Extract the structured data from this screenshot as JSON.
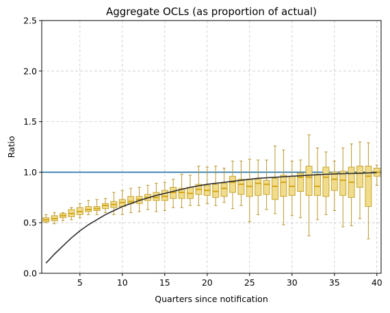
{
  "chart_data": {
    "type": "box",
    "title": "Aggregate OCLs (as proportion of actual)",
    "xlabel": "Quarters since notification",
    "ylabel": "Ratio",
    "xlim": [
      0.5,
      40.5
    ],
    "ylim": [
      0.0,
      2.5
    ],
    "xticks": [
      5,
      10,
      15,
      20,
      25,
      30,
      35,
      40
    ],
    "yticks": [
      0.0,
      0.5,
      1.0,
      1.5,
      2.0,
      2.5
    ],
    "grid": true,
    "reference_line": 1.0,
    "colors": {
      "box_fill": "#f0dc8a",
      "box_edge": "#c8a532",
      "median": "#d4a514",
      "whisker": "#b8962e",
      "curve": "#2b2b2b",
      "reference": "#1f6fa3",
      "grid": "#c8c8c8"
    },
    "boxes": [
      {
        "q": 1,
        "whislo": 0.5,
        "q1": 0.51,
        "med": 0.53,
        "q3": 0.55,
        "whishi": 0.58
      },
      {
        "q": 2,
        "whislo": 0.49,
        "q1": 0.52,
        "med": 0.54,
        "q3": 0.57,
        "whishi": 0.6
      },
      {
        "q": 3,
        "whislo": 0.52,
        "q1": 0.55,
        "med": 0.57,
        "q3": 0.59,
        "whishi": 0.6
      },
      {
        "q": 4,
        "whislo": 0.53,
        "q1": 0.56,
        "med": 0.59,
        "q3": 0.63,
        "whishi": 0.65
      },
      {
        "q": 5,
        "whislo": 0.55,
        "q1": 0.58,
        "med": 0.61,
        "q3": 0.65,
        "whishi": 0.69
      },
      {
        "q": 6,
        "whislo": 0.58,
        "q1": 0.61,
        "med": 0.63,
        "q3": 0.66,
        "whishi": 0.72
      },
      {
        "q": 7,
        "whislo": 0.58,
        "q1": 0.62,
        "med": 0.64,
        "q3": 0.66,
        "whishi": 0.73
      },
      {
        "q": 8,
        "whislo": 0.6,
        "q1": 0.64,
        "med": 0.67,
        "q3": 0.69,
        "whishi": 0.74
      },
      {
        "q": 9,
        "whislo": 0.58,
        "q1": 0.65,
        "med": 0.68,
        "q3": 0.71,
        "whishi": 0.8
      },
      {
        "q": 10,
        "whislo": 0.58,
        "q1": 0.66,
        "med": 0.7,
        "q3": 0.73,
        "whishi": 0.82
      },
      {
        "q": 11,
        "whislo": 0.6,
        "q1": 0.69,
        "med": 0.71,
        "q3": 0.76,
        "whishi": 0.84
      },
      {
        "q": 12,
        "whislo": 0.61,
        "q1": 0.69,
        "med": 0.73,
        "q3": 0.76,
        "whishi": 0.85
      },
      {
        "q": 13,
        "whislo": 0.63,
        "q1": 0.72,
        "med": 0.75,
        "q3": 0.78,
        "whishi": 0.87
      },
      {
        "q": 14,
        "whislo": 0.61,
        "q1": 0.72,
        "med": 0.75,
        "q3": 0.8,
        "whishi": 0.89
      },
      {
        "q": 15,
        "whislo": 0.62,
        "q1": 0.72,
        "med": 0.76,
        "q3": 0.82,
        "whishi": 0.9
      },
      {
        "q": 16,
        "whislo": 0.65,
        "q1": 0.74,
        "med": 0.8,
        "q3": 0.85,
        "whishi": 0.93
      },
      {
        "q": 17,
        "whislo": 0.65,
        "q1": 0.74,
        "med": 0.8,
        "q3": 0.84,
        "whishi": 0.98
      },
      {
        "q": 18,
        "whislo": 0.67,
        "q1": 0.74,
        "med": 0.79,
        "q3": 0.85,
        "whishi": 0.97
      },
      {
        "q": 19,
        "whislo": 0.67,
        "q1": 0.78,
        "med": 0.83,
        "q3": 0.88,
        "whishi": 1.06
      },
      {
        "q": 20,
        "whislo": 0.69,
        "q1": 0.77,
        "med": 0.82,
        "q3": 0.87,
        "whishi": 1.05
      },
      {
        "q": 21,
        "whislo": 0.67,
        "q1": 0.75,
        "med": 0.81,
        "q3": 0.88,
        "whishi": 1.06
      },
      {
        "q": 22,
        "whislo": 0.7,
        "q1": 0.76,
        "med": 0.84,
        "q3": 0.89,
        "whishi": 1.04
      },
      {
        "q": 23,
        "whislo": 0.64,
        "q1": 0.8,
        "med": 0.9,
        "q3": 0.96,
        "whishi": 1.11
      },
      {
        "q": 24,
        "whislo": 0.67,
        "q1": 0.78,
        "med": 0.88,
        "q3": 0.93,
        "whishi": 1.11
      },
      {
        "q": 25,
        "whislo": 0.51,
        "q1": 0.76,
        "med": 0.86,
        "q3": 0.93,
        "whishi": 1.13
      },
      {
        "q": 26,
        "whislo": 0.58,
        "q1": 0.77,
        "med": 0.89,
        "q3": 0.93,
        "whishi": 1.12
      },
      {
        "q": 27,
        "whislo": 0.63,
        "q1": 0.78,
        "med": 0.88,
        "q3": 0.92,
        "whishi": 1.12
      },
      {
        "q": 28,
        "whislo": 0.59,
        "q1": 0.73,
        "med": 0.86,
        "q3": 0.94,
        "whishi": 1.26
      },
      {
        "q": 29,
        "whislo": 0.48,
        "q1": 0.76,
        "med": 0.9,
        "q3": 0.97,
        "whishi": 1.22
      },
      {
        "q": 30,
        "whislo": 0.57,
        "q1": 0.77,
        "med": 0.86,
        "q3": 0.96,
        "whishi": 1.11
      },
      {
        "q": 31,
        "whislo": 0.55,
        "q1": 0.81,
        "med": 0.95,
        "q3": 0.99,
        "whishi": 1.12
      },
      {
        "q": 32,
        "whislo": 0.37,
        "q1": 0.77,
        "med": 0.95,
        "q3": 1.06,
        "whishi": 1.37
      },
      {
        "q": 33,
        "whislo": 0.53,
        "q1": 0.77,
        "med": 0.86,
        "q3": 0.98,
        "whishi": 1.24
      },
      {
        "q": 34,
        "whislo": 0.58,
        "q1": 0.76,
        "med": 0.95,
        "q3": 1.05,
        "whishi": 1.2
      },
      {
        "q": 35,
        "whislo": 0.62,
        "q1": 0.82,
        "med": 0.93,
        "q3": 1.0,
        "whishi": 1.11
      },
      {
        "q": 36,
        "whislo": 0.46,
        "q1": 0.77,
        "med": 0.92,
        "q3": 1.01,
        "whishi": 1.24
      },
      {
        "q": 37,
        "whislo": 0.47,
        "q1": 0.75,
        "med": 0.9,
        "q3": 1.05,
        "whishi": 1.28
      },
      {
        "q": 38,
        "whislo": 0.54,
        "q1": 0.85,
        "med": 0.99,
        "q3": 1.06,
        "whishi": 1.3
      },
      {
        "q": 39,
        "whislo": 0.34,
        "q1": 0.66,
        "med": 0.96,
        "q3": 1.06,
        "whishi": 1.29
      },
      {
        "q": 40,
        "whislo": 0.87,
        "q1": 0.96,
        "med": 1.0,
        "q3": 1.04,
        "whishi": 1.07
      }
    ],
    "curve": {
      "x": [
        1,
        2,
        3,
        4,
        5,
        6,
        7,
        8,
        9,
        10,
        12,
        14,
        16,
        18,
        20,
        22,
        24,
        26,
        28,
        30,
        32,
        34,
        36,
        38,
        40
      ],
      "y": [
        0.1,
        0.19,
        0.27,
        0.35,
        0.42,
        0.48,
        0.53,
        0.58,
        0.62,
        0.66,
        0.72,
        0.77,
        0.81,
        0.85,
        0.88,
        0.9,
        0.92,
        0.94,
        0.95,
        0.96,
        0.97,
        0.98,
        0.985,
        0.99,
        0.995
      ]
    }
  }
}
